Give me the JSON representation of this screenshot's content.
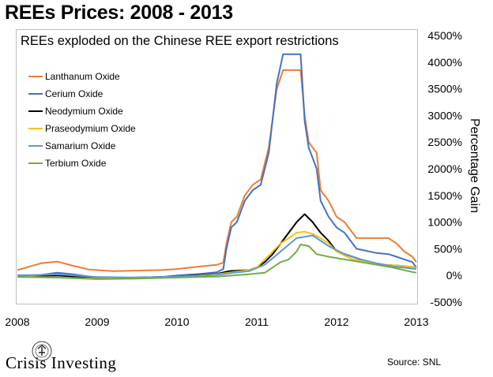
{
  "title": "REEs Prices: 2008 - 2013",
  "source": "Source: SNL",
  "brand": {
    "name": "Crisis Investing",
    "emblem": "crisis-investing-emblem"
  },
  "chart_data": {
    "type": "line",
    "title": "REEs exploded on the Chinese REE export restrictions",
    "xlabel": "",
    "ylabel": "Percentage Gain",
    "xlim": [
      2008,
      2013
    ],
    "ylim": [
      -500,
      4500
    ],
    "x_ticks": [
      "2008",
      "2009",
      "2010",
      "2011",
      "2012",
      "2013"
    ],
    "y_ticks": [
      "4500%",
      "4000%",
      "3500%",
      "3000%",
      "2500%",
      "2000%",
      "1500%",
      "1000%",
      "500%",
      "0%",
      "-500%"
    ],
    "y_tick_values": [
      4500,
      4000,
      3500,
      3000,
      2500,
      2000,
      1500,
      1000,
      500,
      0,
      -500
    ],
    "grid": false,
    "legend_position": "top-left",
    "series": [
      {
        "name": "Lanthanum Oxide",
        "color": "#ed7d31",
        "x": [
          2008.0,
          2008.3,
          2008.5,
          2008.7,
          2008.9,
          2009.2,
          2009.5,
          2009.8,
          2010.0,
          2010.3,
          2010.5,
          2010.58,
          2010.62,
          2010.68,
          2010.75,
          2010.85,
          2010.95,
          2011.05,
          2011.15,
          2011.25,
          2011.33,
          2011.42,
          2011.55,
          2011.6,
          2011.65,
          2011.75,
          2011.8,
          2011.9,
          2012.0,
          2012.1,
          2012.25,
          2012.5,
          2012.65,
          2012.75,
          2012.85,
          2012.95,
          2013.0
        ],
        "y": [
          100,
          230,
          260,
          180,
          110,
          80,
          90,
          100,
          120,
          170,
          200,
          240,
          600,
          1000,
          1100,
          1500,
          1700,
          1800,
          2400,
          3500,
          3850,
          3850,
          3850,
          3000,
          2500,
          2300,
          1600,
          1400,
          1100,
          1000,
          700,
          700,
          700,
          600,
          450,
          350,
          250
        ]
      },
      {
        "name": "Cerium Oxide",
        "color": "#4472c4",
        "x": [
          2008.0,
          2008.3,
          2008.5,
          2008.7,
          2008.9,
          2009.2,
          2009.5,
          2009.8,
          2010.0,
          2010.3,
          2010.5,
          2010.58,
          2010.62,
          2010.68,
          2010.75,
          2010.85,
          2010.95,
          2011.05,
          2011.15,
          2011.25,
          2011.33,
          2011.42,
          2011.55,
          2011.6,
          2011.65,
          2011.75,
          2011.8,
          2011.9,
          2012.0,
          2012.1,
          2012.25,
          2012.5,
          2012.65,
          2012.75,
          2012.85,
          2012.95,
          2013.0
        ],
        "y": [
          0,
          10,
          50,
          20,
          -20,
          -50,
          -50,
          -30,
          0,
          30,
          60,
          120,
          500,
          900,
          1000,
          1400,
          1600,
          1700,
          2300,
          3600,
          4150,
          4150,
          4150,
          2900,
          2400,
          2000,
          1400,
          1100,
          900,
          800,
          500,
          420,
          400,
          350,
          300,
          250,
          150
        ]
      },
      {
        "name": "Neodymium Oxide",
        "color": "#000000",
        "x": [
          2008.0,
          2008.5,
          2009.0,
          2009.5,
          2010.0,
          2010.5,
          2010.65,
          2010.9,
          2011.0,
          2011.1,
          2011.2,
          2011.3,
          2011.4,
          2011.5,
          2011.6,
          2011.7,
          2011.8,
          2011.9,
          2012.0,
          2012.2,
          2012.4,
          2012.6,
          2012.8,
          2013.0
        ],
        "y": [
          -10,
          0,
          -50,
          -40,
          -20,
          30,
          80,
          100,
          150,
          250,
          400,
          600,
          800,
          1000,
          1150,
          1000,
          800,
          650,
          450,
          350,
          250,
          200,
          180,
          150
        ]
      },
      {
        "name": "Praseodymium Oxide",
        "color": "#ffc000",
        "x": [
          2008.0,
          2008.5,
          2009.0,
          2009.5,
          2010.0,
          2010.5,
          2010.65,
          2010.9,
          2011.0,
          2011.1,
          2011.2,
          2011.3,
          2011.4,
          2011.5,
          2011.6,
          2011.7,
          2011.8,
          2011.9,
          2012.0,
          2012.2,
          2012.4,
          2012.6,
          2012.8,
          2013.0
        ],
        "y": [
          -20,
          -40,
          -60,
          -50,
          -30,
          20,
          50,
          100,
          150,
          300,
          450,
          600,
          700,
          800,
          820,
          780,
          700,
          600,
          450,
          300,
          250,
          200,
          180,
          150
        ]
      },
      {
        "name": "Samarium Oxide",
        "color": "#5b9bd5",
        "x": [
          2008.0,
          2008.5,
          2009.0,
          2009.5,
          2010.0,
          2010.5,
          2010.65,
          2010.9,
          2011.1,
          2011.3,
          2011.5,
          2011.7,
          2011.9,
          2012.1,
          2012.3,
          2012.5,
          2012.7,
          2013.0
        ],
        "y": [
          -10,
          20,
          -30,
          -40,
          -20,
          10,
          40,
          80,
          200,
          450,
          700,
          750,
          550,
          400,
          300,
          230,
          170,
          120
        ]
      },
      {
        "name": "Terbium Oxide",
        "color": "#70ad47",
        "x": [
          2008.0,
          2008.5,
          2009.0,
          2009.5,
          2010.0,
          2010.5,
          2010.7,
          2010.9,
          2011.1,
          2011.2,
          2011.3,
          2011.4,
          2011.5,
          2011.55,
          2011.65,
          2011.75,
          2011.9,
          2012.1,
          2012.3,
          2012.5,
          2012.7,
          2012.9,
          2013.0
        ],
        "y": [
          -30,
          -40,
          -70,
          -60,
          -40,
          -20,
          0,
          20,
          50,
          150,
          250,
          300,
          450,
          580,
          550,
          400,
          350,
          300,
          250,
          200,
          150,
          80,
          50
        ]
      }
    ]
  }
}
